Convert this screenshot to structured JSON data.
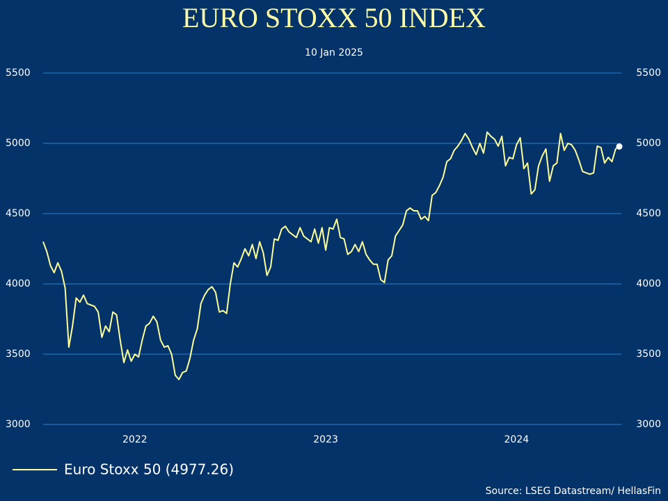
{
  "chart_data": {
    "type": "line",
    "title": "EURO STOXX 50 INDEX",
    "subtitle": "10 Jan 2025",
    "source": "Source: LSEG Datastream/ HellasFin",
    "categories": [
      null,
      null,
      null,
      null,
      null,
      null,
      null,
      null,
      null,
      null,
      null,
      null,
      null,
      null,
      null,
      null,
      null,
      null,
      null,
      null,
      null,
      null,
      null,
      null,
      null,
      "2022",
      null,
      null,
      null,
      null,
      null,
      null,
      null,
      null,
      null,
      null,
      null,
      null,
      null,
      null,
      null,
      null,
      null,
      null,
      null,
      null,
      null,
      null,
      null,
      null,
      null,
      null,
      null,
      null,
      null,
      null,
      null,
      null,
      null,
      null,
      null,
      null,
      null,
      null,
      null,
      null,
      null,
      null,
      null,
      null,
      null,
      null,
      null,
      null,
      null,
      null,
      null,
      "2023",
      null,
      null,
      null,
      null,
      null,
      null,
      null,
      null,
      null,
      null,
      null,
      null,
      null,
      null,
      null,
      null,
      null,
      null,
      null,
      null,
      null,
      null,
      null,
      null,
      null,
      null,
      null,
      null,
      null,
      null,
      null,
      null,
      null,
      null,
      null,
      null,
      null,
      null,
      null,
      null,
      null,
      null,
      null,
      null,
      null,
      null,
      null,
      null,
      null,
      null,
      null,
      "2024",
      null,
      null,
      null,
      null,
      null,
      null,
      null,
      null,
      null,
      null,
      null,
      null,
      null,
      null,
      null,
      null,
      null,
      null,
      null,
      null,
      null,
      null,
      null,
      null,
      null,
      null,
      null,
      null
    ],
    "series": [
      {
        "name": "Euro Stoxx 50 (4977.26)",
        "color": "#ffff99",
        "values": [
          4300,
          4230,
          4130,
          4080,
          4150,
          4090,
          3970,
          3550,
          3700,
          3900,
          3870,
          3920,
          3860,
          3850,
          3840,
          3800,
          3620,
          3700,
          3660,
          3800,
          3780,
          3600,
          3440,
          3530,
          3450,
          3500,
          3480,
          3600,
          3700,
          3720,
          3770,
          3730,
          3600,
          3550,
          3560,
          3500,
          3350,
          3320,
          3370,
          3380,
          3470,
          3600,
          3680,
          3860,
          3920,
          3960,
          3980,
          3940,
          3800,
          3810,
          3790,
          4000,
          4150,
          4120,
          4180,
          4250,
          4200,
          4280,
          4180,
          4300,
          4220,
          4060,
          4120,
          4320,
          4310,
          4390,
          4410,
          4370,
          4350,
          4330,
          4400,
          4340,
          4320,
          4300,
          4390,
          4290,
          4400,
          4240,
          4400,
          4390,
          4460,
          4330,
          4320,
          4210,
          4230,
          4280,
          4230,
          4300,
          4210,
          4170,
          4140,
          4140,
          4030,
          4010,
          4170,
          4200,
          4340,
          4380,
          4420,
          4520,
          4540,
          4520,
          4520,
          4460,
          4480,
          4450,
          4630,
          4650,
          4700,
          4760,
          4870,
          4890,
          4950,
          4980,
          5020,
          5070,
          5030,
          4970,
          4920,
          5000,
          4930,
          5080,
          5050,
          5030,
          4980,
          5050,
          4840,
          4900,
          4890,
          4990,
          5040,
          4820,
          4860,
          4640,
          4670,
          4840,
          4910,
          4960,
          4730,
          4840,
          4860,
          5070,
          4950,
          5000,
          4990,
          4950,
          4880,
          4800,
          4790,
          4780,
          4790,
          4980,
          4970,
          4860,
          4900,
          4870,
          4960,
          4977.26
        ]
      }
    ],
    "ylim": [
      3000,
      5500
    ],
    "yticks": [
      3000,
      3500,
      4000,
      4500,
      5000,
      5500
    ],
    "grid": true
  }
}
